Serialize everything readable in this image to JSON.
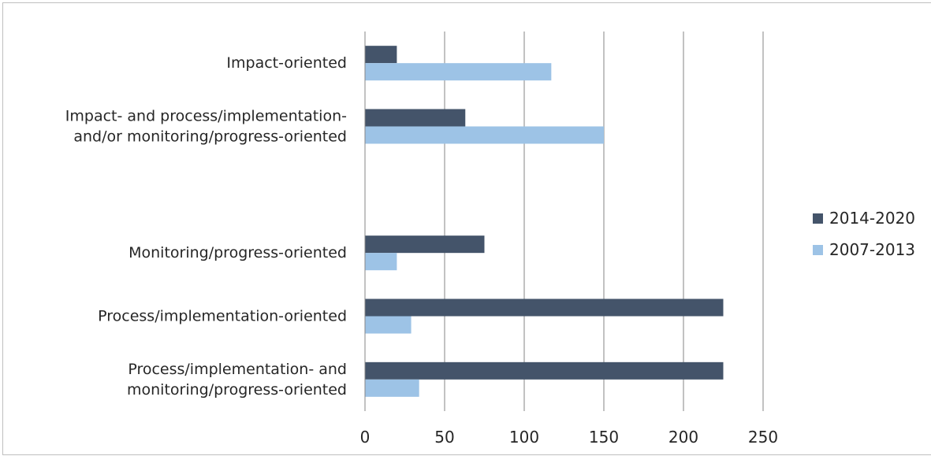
{
  "chart_data": {
    "type": "bar",
    "orientation": "horizontal",
    "categories": [
      [
        "Impact-oriented"
      ],
      [
        "Impact- and process/implementation-",
        "and/or monitoring/progress-oriented"
      ],
      [
        ""
      ],
      [
        "Monitoring/progress-oriented"
      ],
      [
        "Process/implementation-oriented"
      ],
      [
        "Process/implementation- and",
        "monitoring/progress-oriented"
      ]
    ],
    "series": [
      {
        "name": "2014-2020",
        "color": "#44546a",
        "values": [
          20,
          63,
          null,
          75,
          225,
          225
        ]
      },
      {
        "name": "2007-2013",
        "color": "#9dc3e6",
        "values": [
          117,
          150,
          null,
          20,
          29,
          34
        ]
      }
    ],
    "xlim": [
      0,
      250
    ],
    "x_ticks": [
      "0",
      "50",
      "100",
      "150",
      "200",
      "250"
    ],
    "grid": true,
    "legend": "right",
    "title": "",
    "xlabel": "",
    "ylabel": ""
  }
}
